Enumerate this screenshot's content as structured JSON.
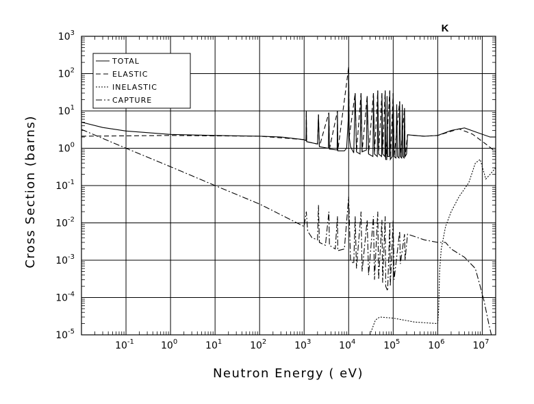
{
  "chart_data": {
    "type": "line",
    "title": "K",
    "xlabel": "Neutron Energy ( eV)",
    "ylabel": "Cross Section (barns)",
    "xscale": "log",
    "yscale": "log",
    "xlim": [
      0.01,
      20000000
    ],
    "ylim": [
      1e-05,
      1000
    ],
    "grid": true,
    "legend_position": "top-left",
    "x_ticks": [
      {
        "base": "10",
        "exp": "-1",
        "value": 0.1
      },
      {
        "base": "10",
        "exp": "0",
        "value": 1
      },
      {
        "base": "10",
        "exp": "1",
        "value": 10
      },
      {
        "base": "10",
        "exp": "2",
        "value": 100
      },
      {
        "base": "10",
        "exp": "3",
        "value": 1000
      },
      {
        "base": "10",
        "exp": "4",
        "value": 10000
      },
      {
        "base": "10",
        "exp": "5",
        "value": 100000
      },
      {
        "base": "10",
        "exp": "6",
        "value": 1000000
      },
      {
        "base": "10",
        "exp": "7",
        "value": 10000000
      }
    ],
    "y_ticks": [
      {
        "base": "10",
        "exp": "-5",
        "value": 1e-05
      },
      {
        "base": "10",
        "exp": "-4",
        "value": 0.0001
      },
      {
        "base": "10",
        "exp": "-3",
        "value": 0.001
      },
      {
        "base": "10",
        "exp": "-2",
        "value": 0.01
      },
      {
        "base": "10",
        "exp": "-1",
        "value": 0.1
      },
      {
        "base": "10",
        "exp": "0",
        "value": 1
      },
      {
        "base": "10",
        "exp": "1",
        "value": 10
      },
      {
        "base": "10",
        "exp": "2",
        "value": 100
      },
      {
        "base": "10",
        "exp": "3",
        "value": 1000
      }
    ],
    "series": [
      {
        "name": "TOTAL",
        "style": "solid",
        "points": [
          [
            0.01,
            5.0
          ],
          [
            0.03,
            3.6
          ],
          [
            0.1,
            2.9
          ],
          [
            1,
            2.35
          ],
          [
            10,
            2.2
          ],
          [
            100,
            2.1
          ],
          [
            300,
            2.0
          ],
          [
            1000,
            1.7
          ],
          [
            1100,
            1.6
          ],
          [
            1120,
            10
          ],
          [
            1140,
            1.5
          ],
          [
            2000,
            1.3
          ],
          [
            2100,
            8
          ],
          [
            2200,
            1.1
          ],
          [
            3500,
            1.0
          ],
          [
            3600,
            9
          ],
          [
            3700,
            0.95
          ],
          [
            5500,
            0.9
          ],
          [
            5600,
            10
          ],
          [
            5700,
            0.85
          ],
          [
            8000,
            0.85
          ],
          [
            9000,
            1.0
          ],
          [
            9800,
            6
          ],
          [
            10000,
            150
          ],
          [
            10300,
            2
          ],
          [
            11000,
            1.1
          ],
          [
            13000,
            0.75
          ],
          [
            14000,
            30
          ],
          [
            15000,
            0.8
          ],
          [
            18000,
            0.7
          ],
          [
            19000,
            30
          ],
          [
            20000,
            0.8
          ],
          [
            25000,
            0.9
          ],
          [
            26000,
            25
          ],
          [
            28000,
            0.7
          ],
          [
            35000,
            0.6
          ],
          [
            36000,
            30
          ],
          [
            38000,
            0.7
          ],
          [
            44000,
            0.6
          ],
          [
            45000,
            35
          ],
          [
            47000,
            0.7
          ],
          [
            55000,
            0.6
          ],
          [
            56000,
            30
          ],
          [
            58000,
            0.7
          ],
          [
            65000,
            0.6
          ],
          [
            66000,
            35
          ],
          [
            68000,
            0.5
          ],
          [
            72000,
            0.5
          ],
          [
            73000,
            25
          ],
          [
            75000,
            0.6
          ],
          [
            82000,
            0.6
          ],
          [
            84000,
            35
          ],
          [
            86000,
            0.5
          ],
          [
            95000,
            0.6
          ],
          [
            100000,
            30
          ],
          [
            105000,
            0.6
          ],
          [
            115000,
            0.55
          ],
          [
            120000,
            15
          ],
          [
            125000,
            0.6
          ],
          [
            135000,
            0.55
          ],
          [
            140000,
            18
          ],
          [
            145000,
            0.6
          ],
          [
            155000,
            0.55
          ],
          [
            160000,
            15
          ],
          [
            165000,
            0.6
          ],
          [
            175000,
            0.55
          ],
          [
            180000,
            12
          ],
          [
            185000,
            0.6
          ],
          [
            200000,
            0.7
          ],
          [
            210000,
            2.3
          ],
          [
            300000,
            2.2
          ],
          [
            500000,
            2.1
          ],
          [
            1000000,
            2.2
          ],
          [
            2000000,
            3.0
          ],
          [
            4000000,
            3.5
          ],
          [
            8000000,
            2.6
          ],
          [
            15000000,
            2.0
          ],
          [
            20000000,
            2.0
          ]
        ]
      },
      {
        "name": "ELASTIC",
        "style": "dashed",
        "points": [
          [
            0.01,
            2.1
          ],
          [
            0.1,
            2.15
          ],
          [
            1,
            2.2
          ],
          [
            10,
            2.15
          ],
          [
            100,
            2.1
          ],
          [
            1000,
            1.7
          ],
          [
            1100,
            1.6
          ],
          [
            1120,
            10
          ],
          [
            1140,
            1.5
          ],
          [
            2000,
            1.3
          ],
          [
            2100,
            8
          ],
          [
            2200,
            1.1
          ],
          [
            3600,
            9
          ],
          [
            3700,
            0.95
          ],
          [
            5600,
            10
          ],
          [
            5700,
            0.85
          ],
          [
            10000,
            150
          ],
          [
            10300,
            2
          ],
          [
            14000,
            30
          ],
          [
            15000,
            0.8
          ],
          [
            19000,
            30
          ],
          [
            20000,
            0.8
          ],
          [
            26000,
            25
          ],
          [
            28000,
            0.7
          ],
          [
            36000,
            30
          ],
          [
            38000,
            0.7
          ],
          [
            45000,
            35
          ],
          [
            47000,
            0.7
          ],
          [
            56000,
            30
          ],
          [
            58000,
            0.7
          ],
          [
            66000,
            35
          ],
          [
            68000,
            0.5
          ],
          [
            84000,
            35
          ],
          [
            86000,
            0.5
          ],
          [
            100000,
            30
          ],
          [
            105000,
            0.6
          ],
          [
            140000,
            18
          ],
          [
            145000,
            0.6
          ],
          [
            180000,
            12
          ],
          [
            185000,
            0.6
          ],
          [
            210000,
            2.3
          ],
          [
            500000,
            2.1
          ],
          [
            1000000,
            2.2
          ],
          [
            3000000,
            3.3
          ],
          [
            6000000,
            2.4
          ],
          [
            12000000,
            1.3
          ],
          [
            20000000,
            0.8
          ]
        ]
      },
      {
        "name": "INELASTIC",
        "style": "dotted",
        "points": [
          [
            30000,
            1e-05
          ],
          [
            40000,
            2.5e-05
          ],
          [
            50000,
            3e-05
          ],
          [
            100000,
            2.8e-05
          ],
          [
            300000,
            2.2e-05
          ],
          [
            1000000,
            2e-05
          ],
          [
            1050000,
            5e-05
          ],
          [
            1100000,
            0.0005
          ],
          [
            1200000,
            0.002
          ],
          [
            1500000,
            0.008
          ],
          [
            2000000,
            0.02
          ],
          [
            3000000,
            0.05
          ],
          [
            5000000,
            0.12
          ],
          [
            7000000,
            0.4
          ],
          [
            9000000,
            0.5
          ],
          [
            12000000,
            0.15
          ],
          [
            15000000,
            0.2
          ],
          [
            20000000,
            0.3
          ]
        ]
      },
      {
        "name": "CAPTURE",
        "style": "dashdot",
        "points": [
          [
            0.01,
            3.2
          ],
          [
            0.1,
            1.0
          ],
          [
            1,
            0.32
          ],
          [
            10,
            0.1
          ],
          [
            100,
            0.032
          ],
          [
            1000,
            0.008
          ],
          [
            1120,
            0.02
          ],
          [
            1200,
            0.006
          ],
          [
            1500,
            0.004
          ],
          [
            2000,
            0.0035
          ],
          [
            2100,
            0.03
          ],
          [
            2200,
            0.003
          ],
          [
            3000,
            0.0025
          ],
          [
            3600,
            0.02
          ],
          [
            3700,
            0.0025
          ],
          [
            5000,
            0.002
          ],
          [
            5600,
            0.015
          ],
          [
            5700,
            0.0018
          ],
          [
            8000,
            0.002
          ],
          [
            10000,
            0.05
          ],
          [
            11000,
            0.001
          ],
          [
            13000,
            0.0008
          ],
          [
            14000,
            0.015
          ],
          [
            15000,
            0.0006
          ],
          [
            19000,
            0.02
          ],
          [
            20000,
            0.0005
          ],
          [
            26000,
            0.012
          ],
          [
            28000,
            0.0004
          ],
          [
            36000,
            0.015
          ],
          [
            38000,
            0.0003
          ],
          [
            45000,
            0.02
          ],
          [
            47000,
            0.0003
          ],
          [
            56000,
            0.012
          ],
          [
            58000,
            0.00025
          ],
          [
            66000,
            0.015
          ],
          [
            68000,
            0.0002
          ],
          [
            75000,
            0.00015
          ],
          [
            84000,
            0.01
          ],
          [
            86000,
            0.0002
          ],
          [
            100000,
            0.012
          ],
          [
            105000,
            0.0003
          ],
          [
            140000,
            0.006
          ],
          [
            145000,
            0.0008
          ],
          [
            180000,
            0.005
          ],
          [
            185000,
            0.001
          ],
          [
            210000,
            0.005
          ],
          [
            500000,
            0.0035
          ],
          [
            1000000,
            0.003
          ],
          [
            1500000,
            0.003
          ],
          [
            2000000,
            0.002
          ],
          [
            4000000,
            0.0012
          ],
          [
            7000000,
            0.0006
          ],
          [
            9000000,
            0.0002
          ],
          [
            11000000,
            8e-05
          ],
          [
            14000000,
            2e-05
          ],
          [
            16000000,
            1e-05
          ]
        ]
      }
    ]
  }
}
